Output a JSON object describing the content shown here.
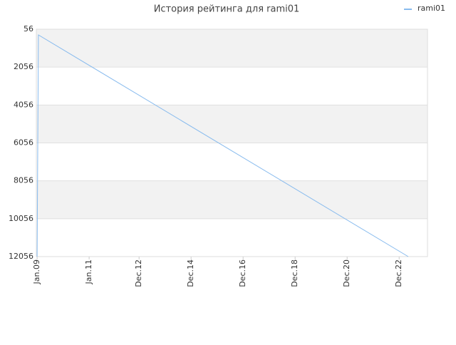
{
  "chart_data": {
    "type": "line",
    "title": "История рейтинга для rami01",
    "x": [
      2009.0,
      2009.05,
      2023.27
    ],
    "series": [
      {
        "name": "rami01",
        "color": "#88bbee",
        "values": [
          12056,
          356,
          12056
        ]
      }
    ],
    "xlim": [
      2008.97,
      2024.01
    ],
    "xticks": [
      {
        "value": 2009.0,
        "label": "Jan.09"
      },
      {
        "value": 2011.0,
        "label": "Jan.11"
      },
      {
        "value": 2012.92,
        "label": "Dec.12"
      },
      {
        "value": 2014.92,
        "label": "Dec.14"
      },
      {
        "value": 2016.92,
        "label": "Dec.16"
      },
      {
        "value": 2018.92,
        "label": "Dec.18"
      },
      {
        "value": 2020.92,
        "label": "Dec.20"
      },
      {
        "value": 2022.92,
        "label": "Dec.22"
      }
    ],
    "ylim": [
      56,
      12056
    ],
    "y_inverted": true,
    "yticks": [
      56,
      2056,
      4056,
      6056,
      8056,
      10056,
      12056
    ],
    "band_color": "#f2f2f2",
    "grid": true,
    "legend": "top-right"
  }
}
